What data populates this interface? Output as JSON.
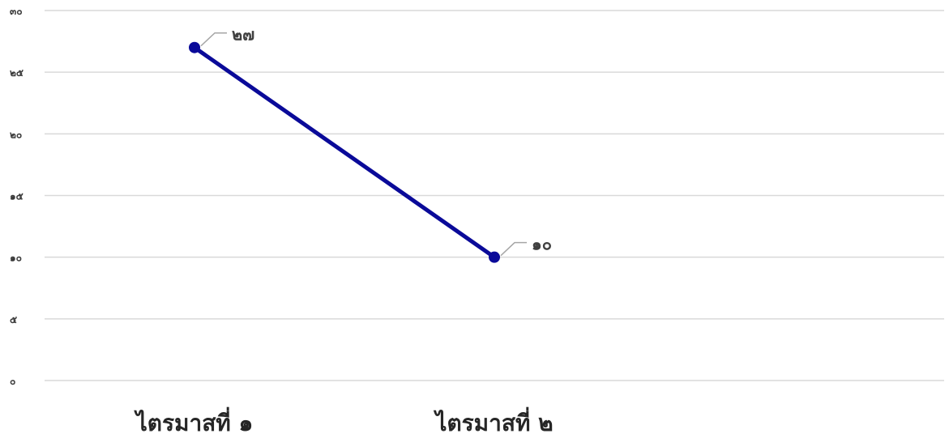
{
  "chart_data": {
    "type": "line",
    "title": "",
    "xlabel": "",
    "ylabel": "",
    "categories": [
      "ไตรมาสที่ ๑",
      "ไตรมาสที่ ๒"
    ],
    "series": [
      {
        "values": [
          27,
          10
        ],
        "value_labels": [
          "๒๗",
          "๑๐"
        ],
        "color": "#0a0a99"
      }
    ],
    "ylim": [
      0,
      30
    ],
    "y_ticks": [
      0,
      5,
      10,
      15,
      20,
      25,
      30
    ],
    "y_tick_labels": [
      "๐",
      "๕",
      "๑๐",
      "๑๕",
      "๒๐",
      "๒๕",
      "๓๐"
    ],
    "grid": true,
    "legend": "none"
  }
}
